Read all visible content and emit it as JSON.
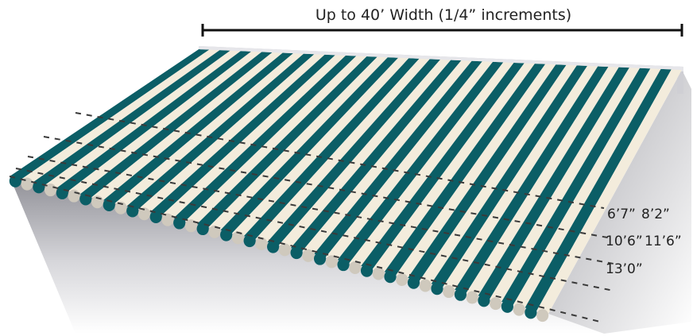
{
  "width_label": "Up to 40’ Width (1/4” increments)",
  "projection_labels": [
    {
      "id": "6-7",
      "text": "6’7”"
    },
    {
      "id": "8-2",
      "text": "8’2”"
    },
    {
      "id": "10-6",
      "text": "10’6”"
    },
    {
      "id": "11-6",
      "text": "11’6”"
    },
    {
      "id": "13-0",
      "text": "13’0”"
    }
  ],
  "colors": {
    "stripe_dark": "#0b5e66",
    "stripe_light": "#f3ecdc",
    "frame": "#cfcfd4",
    "dashed_line": "#3a3a3a"
  }
}
